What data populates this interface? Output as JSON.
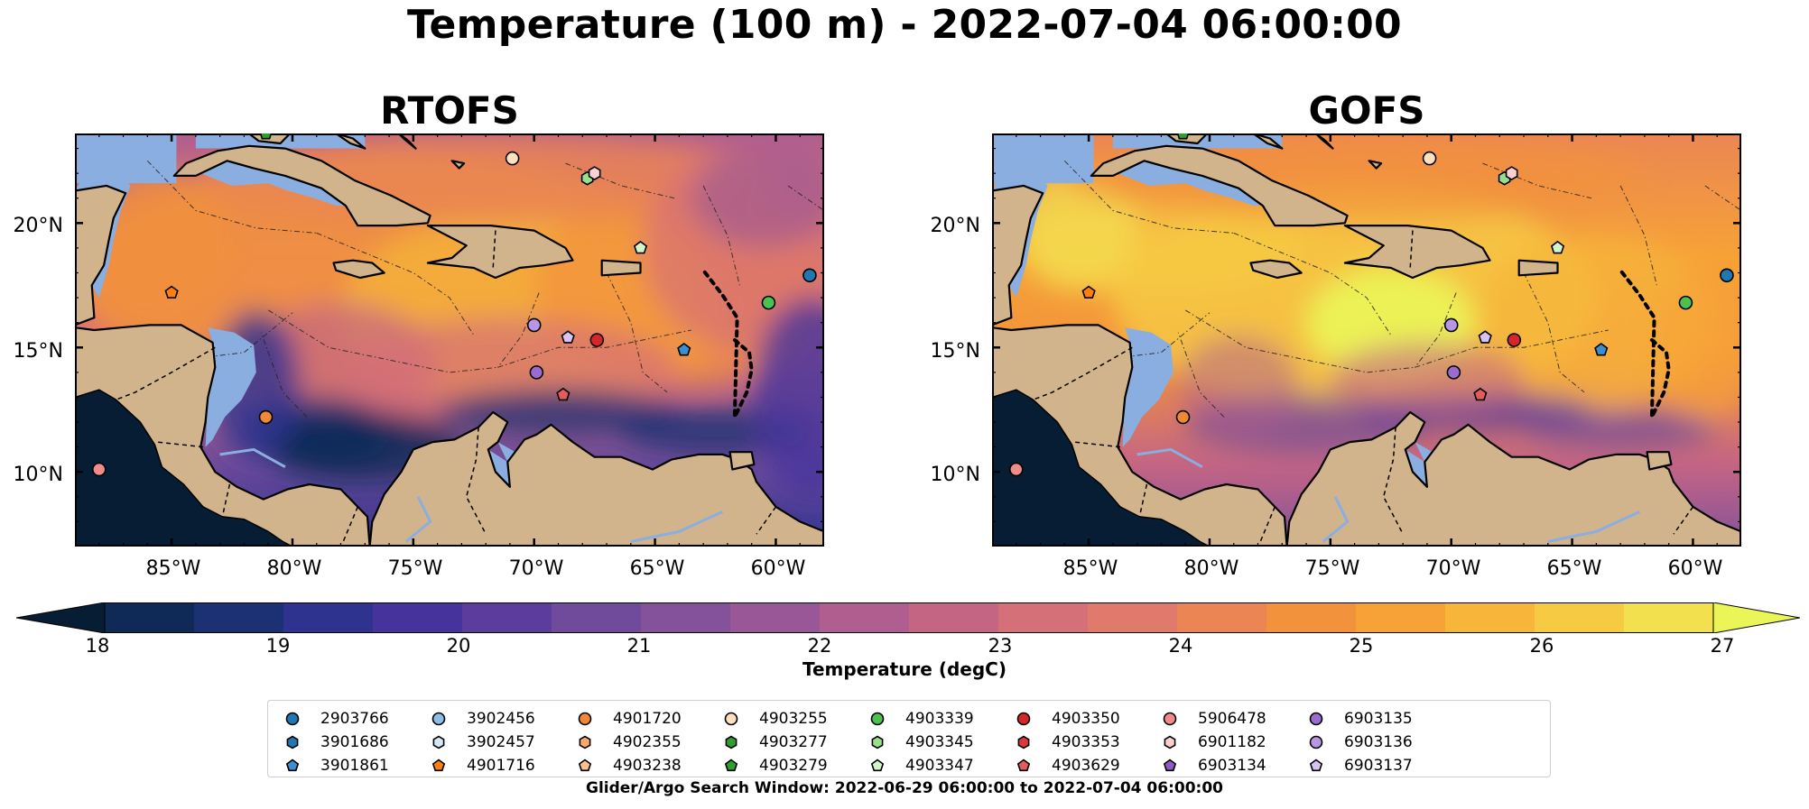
{
  "figure": {
    "title": "Temperature (100 m) - 2022-07-04 06:00:00",
    "footer": "Glider/Argo Search Window: 2022-06-29 06:00:00 to 2022-07-04 06:00:00"
  },
  "panels": [
    {
      "title": "RTOFS",
      "model": "rtofs"
    },
    {
      "title": "GOFS",
      "model": "gofs"
    }
  ],
  "axes": {
    "lon_range": [
      -89,
      -58
    ],
    "lat_range": [
      7,
      23.6
    ],
    "y_ticks": [
      "20°N",
      "15°N",
      "10°N"
    ],
    "y_tick_values": [
      20,
      15,
      10
    ],
    "x_ticks": [
      "85°W",
      "80°W",
      "75°W",
      "70°W",
      "65°W",
      "60°W"
    ],
    "x_tick_values": [
      -85,
      -80,
      -75,
      -70,
      -65,
      -60
    ]
  },
  "colorbar": {
    "label": "Temperature (degC)",
    "ticks": [
      "18",
      "19",
      "20",
      "21",
      "22",
      "23",
      "24",
      "25",
      "26",
      "27"
    ],
    "range": [
      18,
      27
    ],
    "colors": [
      "#061d33",
      "#0f2a56",
      "#1b3174",
      "#2e3390",
      "#46339c",
      "#5c3d9e",
      "#704b9b",
      "#84529a",
      "#9a5798",
      "#b05e8f",
      "#c56584",
      "#d56f78",
      "#e07a6a",
      "#eb8654",
      "#f2923c",
      "#f6a237",
      "#f7b53a",
      "#f6cb43",
      "#f2e04e",
      "#eaf657"
    ]
  },
  "colors": {
    "ocean_deep": "#061d33",
    "land": "#d2b48c",
    "shelf": "#8aaee0",
    "coast": "#000000"
  },
  "legend": [
    {
      "id": "2903766",
      "marker": "circle",
      "color": "#1f77b4"
    },
    {
      "id": "3901686",
      "marker": "hexagon",
      "color": "#1f77b4"
    },
    {
      "id": "3901861",
      "marker": "pentagon",
      "color": "#3b8ed1"
    },
    {
      "id": "3902456",
      "marker": "circle",
      "color": "#8bbfe8"
    },
    {
      "id": "3902457",
      "marker": "hexagon",
      "color": "#d4e8f8"
    },
    {
      "id": "4901716",
      "marker": "pentagon",
      "color": "#ff7f0e"
    },
    {
      "id": "4901720",
      "marker": "circle",
      "color": "#f0883a"
    },
    {
      "id": "4902355",
      "marker": "hexagon",
      "color": "#fca86a"
    },
    {
      "id": "4903238",
      "marker": "pentagon",
      "color": "#fbc08e"
    },
    {
      "id": "4903255",
      "marker": "circle",
      "color": "#fde0bf"
    },
    {
      "id": "4903277",
      "marker": "hexagon",
      "color": "#2ca02c"
    },
    {
      "id": "4903279",
      "marker": "pentagon",
      "color": "#2ca02c"
    },
    {
      "id": "4903339",
      "marker": "circle",
      "color": "#4cc24c"
    },
    {
      "id": "4903345",
      "marker": "hexagon",
      "color": "#98df8a"
    },
    {
      "id": "4903347",
      "marker": "pentagon",
      "color": "#d3f5c8"
    },
    {
      "id": "4903350",
      "marker": "circle",
      "color": "#d62728"
    },
    {
      "id": "4903353",
      "marker": "hexagon",
      "color": "#dc3a3a"
    },
    {
      "id": "4903629",
      "marker": "pentagon",
      "color": "#e35b5b"
    },
    {
      "id": "5906478",
      "marker": "circle",
      "color": "#f28b8b"
    },
    {
      "id": "6901182",
      "marker": "hexagon",
      "color": "#fbd0cf"
    },
    {
      "id": "6903134",
      "marker": "pentagon",
      "color": "#8e5cc0"
    },
    {
      "id": "6903135",
      "marker": "circle",
      "color": "#9b6bd0"
    },
    {
      "id": "6903136",
      "marker": "circle",
      "color": "#b995e6"
    },
    {
      "id": "6903137",
      "marker": "pentagon",
      "color": "#d9c2f4"
    }
  ],
  "floats": [
    {
      "id": "2903766",
      "lon": -58.6,
      "lat": 17.9
    },
    {
      "id": "3901861",
      "lon": -63.8,
      "lat": 14.9
    },
    {
      "id": "4901716",
      "lon": -85.0,
      "lat": 17.2
    },
    {
      "id": "4901720",
      "lon": -81.1,
      "lat": 12.2
    },
    {
      "id": "4903255",
      "lon": -70.9,
      "lat": 22.6
    },
    {
      "id": "4903279",
      "lon": -81.1,
      "lat": 23.6
    },
    {
      "id": "4903339",
      "lon": -60.3,
      "lat": 16.8
    },
    {
      "id": "4903345",
      "lon": -67.8,
      "lat": 21.8
    },
    {
      "id": "4903347",
      "lon": -65.6,
      "lat": 19.0
    },
    {
      "id": "4903350",
      "lon": -67.4,
      "lat": 15.3
    },
    {
      "id": "4903629",
      "lon": -68.8,
      "lat": 13.1
    },
    {
      "id": "5906478",
      "lon": -88.0,
      "lat": 10.1
    },
    {
      "id": "6901182",
      "lon": -67.5,
      "lat": 22.0
    },
    {
      "id": "6903135",
      "lon": -69.9,
      "lat": 14.0
    },
    {
      "id": "6903136",
      "lon": -70.0,
      "lat": 15.9
    },
    {
      "id": "6903137",
      "lon": -68.6,
      "lat": 15.4
    }
  ]
}
